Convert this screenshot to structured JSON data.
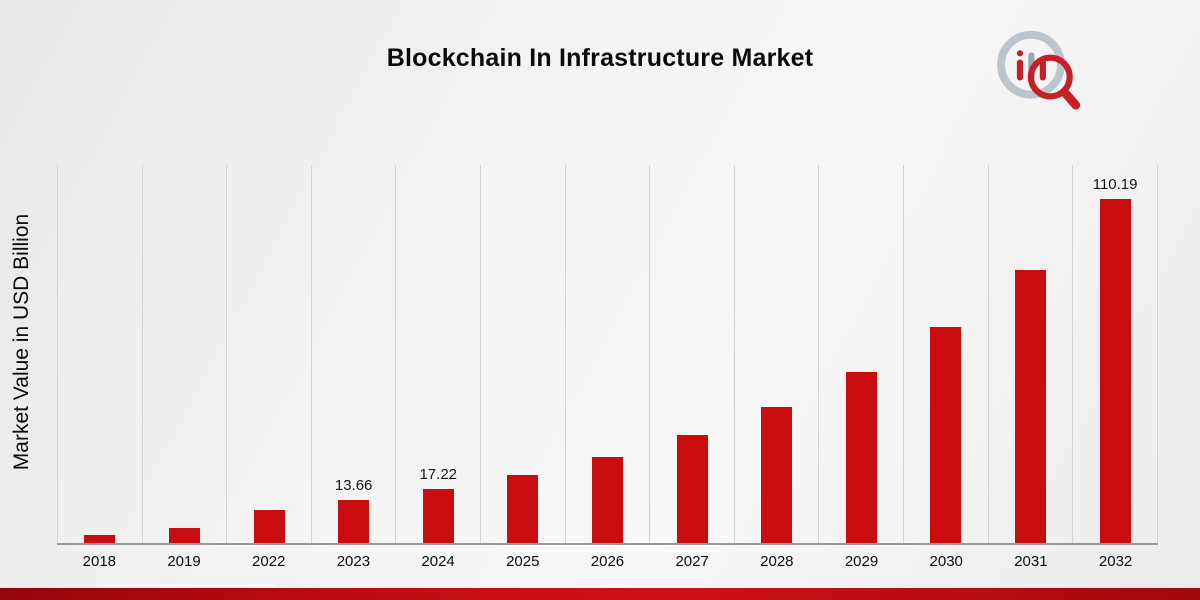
{
  "page": {
    "title": "Blockchain In Infrastructure Market",
    "y_axis_label": "Market Value in USD Billion",
    "brand": {
      "logo_icon": "market-research-magnifier-logo"
    },
    "colors": {
      "bar": "#c90d0e",
      "gridline": "#d3d3d3",
      "baseline": "#9b9b9b",
      "stripe_dark": "#95060b",
      "stripe_bright": "#d01117"
    }
  },
  "chart_data": {
    "type": "bar",
    "title": "Blockchain In Infrastructure Market",
    "xlabel": "",
    "ylabel": "Market Value in USD Billion",
    "categories": [
      "2018",
      "2019",
      "2022",
      "2023",
      "2024",
      "2025",
      "2026",
      "2027",
      "2028",
      "2029",
      "2030",
      "2031",
      "2032"
    ],
    "values": [
      2.5,
      4.9,
      10.5,
      13.66,
      17.22,
      21.7,
      27.4,
      34.5,
      43.5,
      54.9,
      69.2,
      87.3,
      110.19
    ],
    "data_labels": {
      "2023": "13.66",
      "2024": "17.22",
      "2032": "110.19"
    },
    "ylim": [
      0,
      121
    ],
    "grid": "vertical-only",
    "legend": "none",
    "bar_color": "#c90d0e"
  }
}
